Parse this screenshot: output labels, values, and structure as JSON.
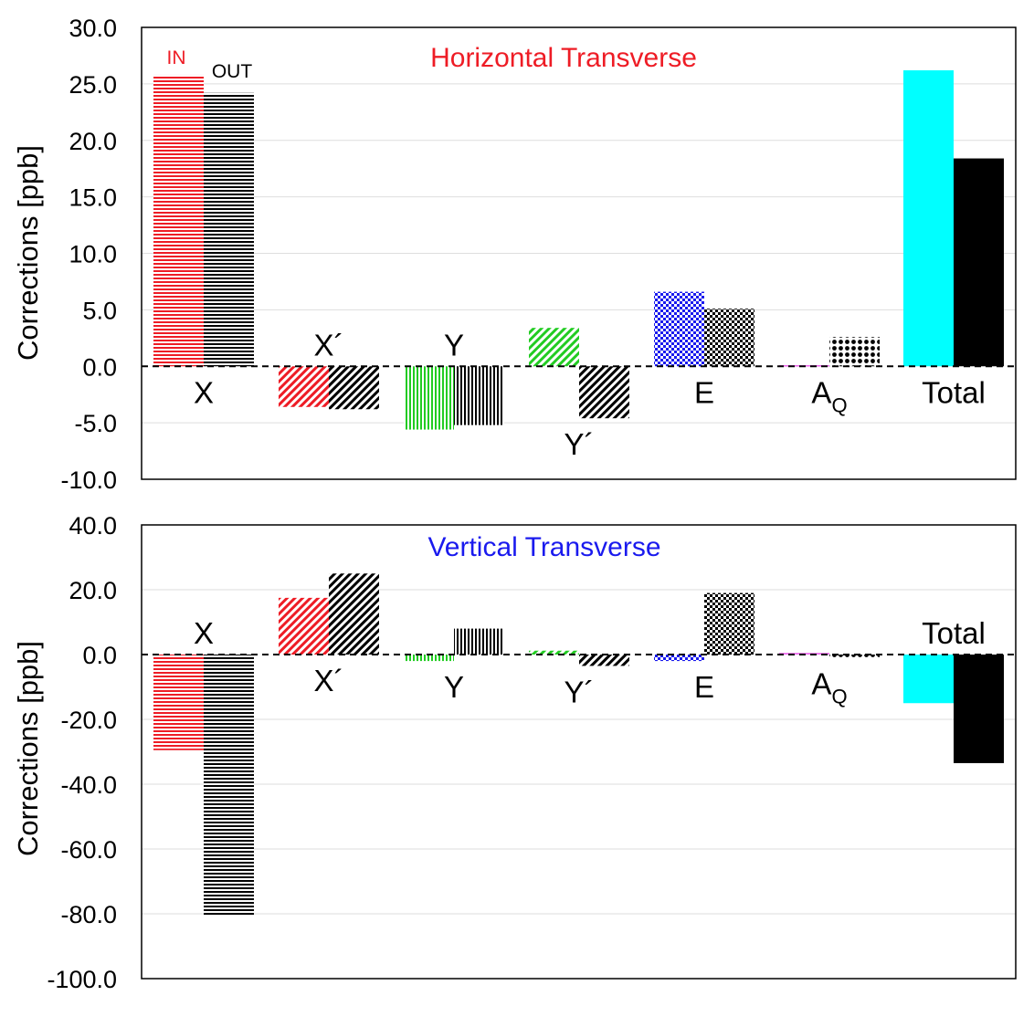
{
  "chart_data": [
    {
      "type": "bar",
      "title": "Horizontal Transverse",
      "title_color": "#ee1c25",
      "ylabel": "Corrections [ppb]",
      "ylim": [
        -10.0,
        30.0
      ],
      "yticks": [
        "30.0",
        "25.0",
        "20.0",
        "15.0",
        "10.0",
        "5.0",
        "0.0",
        "-5.0",
        "-10.0"
      ],
      "grid": true,
      "legend": [
        {
          "label": "IN",
          "color": "#ee1c25"
        },
        {
          "label": "OUT",
          "color": "#000000"
        }
      ],
      "categories": [
        {
          "label": "X",
          "sub": "",
          "label_side": "below"
        },
        {
          "label": "X´",
          "sub": "",
          "label_side": "above"
        },
        {
          "label": "Y",
          "sub": "",
          "label_side": "above"
        },
        {
          "label": "Y´",
          "sub": "",
          "label_side": "below"
        },
        {
          "label": "E",
          "sub": "",
          "label_side": "below"
        },
        {
          "label": "A",
          "sub": "Q",
          "label_side": "below"
        },
        {
          "label": "Total",
          "sub": "",
          "label_side": "below"
        }
      ],
      "series": [
        {
          "name": "IN",
          "values": [
            25.8,
            -3.6,
            -5.6,
            3.4,
            6.6,
            0.1,
            26.2
          ],
          "colors": [
            "#ee1c25",
            "#ee1c25",
            "#22cc22",
            "#22cc22",
            "#1a1aee",
            "#ee66ee",
            "#00ffff"
          ],
          "patterns": [
            "hlines",
            "diag",
            "vlines",
            "diag",
            "check",
            "solid",
            "solid"
          ]
        },
        {
          "name": "OUT",
          "values": [
            24.2,
            -3.8,
            -5.2,
            -4.6,
            5.1,
            2.6,
            18.4
          ],
          "colors": [
            "#000000",
            "#000000",
            "#000000",
            "#000000",
            "#000000",
            "#000000",
            "#000000"
          ],
          "patterns": [
            "hlines",
            "diag",
            "vlines",
            "diag",
            "check",
            "dots",
            "solid"
          ]
        }
      ]
    },
    {
      "type": "bar",
      "title": "Vertical Transverse",
      "title_color": "#1a1aee",
      "ylabel": "Corrections [ppb]",
      "ylim": [
        -100.0,
        40.0
      ],
      "yticks": [
        "40.0",
        "20.0",
        "0.0",
        "-20.0",
        "-40.0",
        "-60.0",
        "-80.0",
        "-100.0"
      ],
      "grid": true,
      "categories": [
        {
          "label": "X",
          "sub": "",
          "label_side": "above"
        },
        {
          "label": "X´",
          "sub": "",
          "label_side": "below"
        },
        {
          "label": "Y",
          "sub": "",
          "label_side": "below"
        },
        {
          "label": "Y´",
          "sub": "",
          "label_side": "below"
        },
        {
          "label": "E",
          "sub": "",
          "label_side": "below"
        },
        {
          "label": "A",
          "sub": "Q",
          "label_side": "below"
        },
        {
          "label": "Total",
          "sub": "",
          "label_side": "above"
        }
      ],
      "series": [
        {
          "name": "IN",
          "values": [
            -29.5,
            17.5,
            -2.0,
            1.2,
            -2.0,
            0.5,
            -15.0
          ],
          "colors": [
            "#ee1c25",
            "#ee1c25",
            "#22cc22",
            "#22cc22",
            "#1a1aee",
            "#ee66ee",
            "#00ffff"
          ],
          "patterns": [
            "hlines",
            "diag",
            "vlines",
            "diag",
            "check",
            "solid",
            "solid"
          ]
        },
        {
          "name": "OUT",
          "values": [
            -80.5,
            25.0,
            8.0,
            -3.5,
            19.0,
            -1.0,
            -33.5
          ],
          "colors": [
            "#000000",
            "#000000",
            "#000000",
            "#000000",
            "#000000",
            "#000000",
            "#000000"
          ],
          "patterns": [
            "hlines",
            "diag",
            "vlines",
            "diag",
            "check",
            "dots",
            "solid"
          ]
        }
      ]
    }
  ]
}
